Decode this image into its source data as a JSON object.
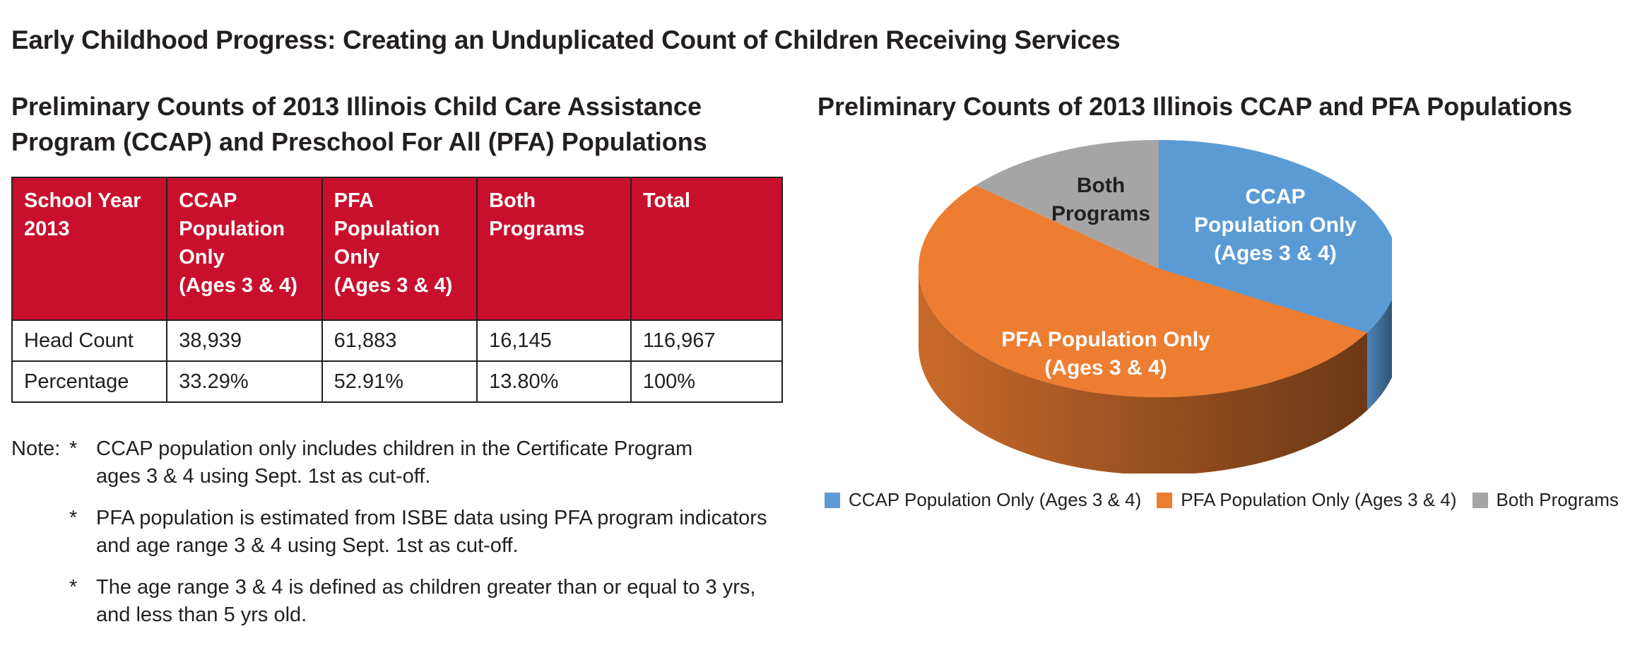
{
  "main_title": "Early Childhood Progress: Creating an Unduplicated Count of Children Receiving Services",
  "table_section": {
    "title_line1": "Preliminary Counts of 2013 Illinois Child Care Assistance",
    "title_line2": "Program (CCAP) and Preschool For All (PFA) Populations",
    "header_color": "#c8102e",
    "headers": [
      [
        "School Year",
        "2013"
      ],
      [
        "CCAP",
        "Population",
        "Only",
        "(Ages 3 & 4)"
      ],
      [
        "PFA",
        "Population",
        "Only",
        "(Ages 3 & 4)"
      ],
      [
        "Both",
        "Programs"
      ],
      [
        "Total"
      ]
    ],
    "rows": [
      [
        "Head Count",
        "38,939",
        "61,883",
        "16,145",
        "116,967"
      ],
      [
        "Percentage",
        "33.29%",
        "52.91%",
        "13.80%",
        "100%"
      ]
    ]
  },
  "notes": {
    "prefix": "Note:",
    "star": "*",
    "items": [
      {
        "line1": "CCAP population only includes children in the Certificate Program",
        "line2": "ages 3 & 4 using Sept. 1st as cut-off."
      },
      {
        "line1": "PFA population is estimated from ISBE data using PFA program indicators",
        "line2": "and age range 3 & 4 using Sept. 1st as cut-off."
      },
      {
        "line1": "The age range 3 & 4 is defined as children greater than or equal to 3 yrs,",
        "line2": "and less than 5 yrs old."
      }
    ]
  },
  "chart_data": {
    "type": "pie",
    "title": "Preliminary Counts of 2013 Illinois CCAP and PFA Populations",
    "slices": [
      {
        "name": "CCAP Population Only (Ages 3 & 4)",
        "value": 38939,
        "percent": 33.29,
        "color": "#5b9bd5",
        "label_lines": [
          "CCAP",
          "Population Only",
          "(Ages 3 & 4)"
        ],
        "label_color": "#ffffff"
      },
      {
        "name": "PFA Population Only (Ages 3 & 4)",
        "value": 61883,
        "percent": 52.91,
        "color": "#ed7d31",
        "label_lines": [
          "PFA Population Only",
          "(Ages 3 & 4)"
        ],
        "label_color": "#ffffff"
      },
      {
        "name": "Both Programs",
        "value": 16145,
        "percent": 13.8,
        "color": "#a5a5a5",
        "label_lines": [
          "Both",
          "Programs"
        ],
        "label_color": "#231f20"
      }
    ],
    "legend": [
      "CCAP Population Only (Ages 3 & 4)",
      "PFA Population Only (Ages 3 & 4)",
      "Both Programs"
    ],
    "legend_position": "bottom",
    "style": "3d"
  }
}
